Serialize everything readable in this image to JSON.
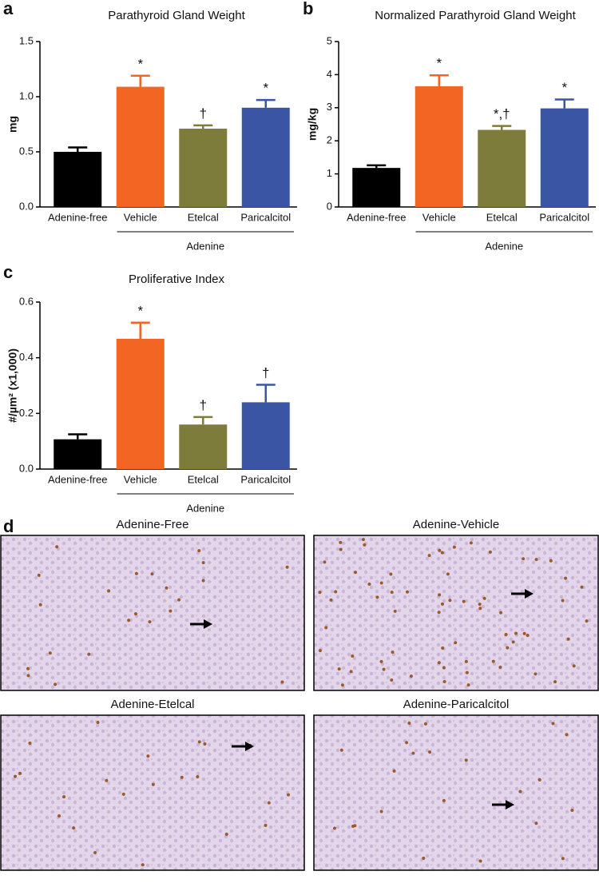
{
  "chart_data": [
    {
      "type": "bar",
      "panel_label": "a",
      "title": "Parathyroid Gland Weight",
      "y_label": "mg",
      "categories": [
        "Adenine-free",
        "Vehicle",
        "Etelcal",
        "Paricalcitol"
      ],
      "values": [
        0.5,
        1.09,
        0.71,
        0.9
      ],
      "errors": [
        0.04,
        0.1,
        0.03,
        0.07
      ],
      "annotations": [
        null,
        "*",
        "†",
        "*"
      ],
      "colors": [
        "#000000",
        "#f26522",
        "#7d7c3a",
        "#3a55a4"
      ],
      "group_label": "Adenine",
      "ylim": [
        0,
        1.5
      ],
      "yticks": [
        {
          "value": 0,
          "label": "0.0"
        },
        0.5,
        {
          "value": 1,
          "label": "1.0"
        },
        1.5
      ]
    },
    {
      "type": "bar",
      "panel_label": "b",
      "title": "Normalized Parathyroid Gland Weight",
      "y_label": "mg/kg",
      "categories": [
        "Adenine-free",
        "Vehicle",
        "Etelcal",
        "Paricalcitol"
      ],
      "values": [
        1.18,
        3.65,
        2.33,
        2.98
      ],
      "errors": [
        0.08,
        0.33,
        0.12,
        0.27
      ],
      "annotations": [
        null,
        "*",
        "*,†",
        "*"
      ],
      "colors": [
        "#000000",
        "#f26522",
        "#7d7c3a",
        "#3a55a4"
      ],
      "group_label": "Adenine",
      "ylim": [
        0,
        5
      ],
      "yticks": [
        0,
        1,
        2,
        3,
        4,
        5
      ]
    },
    {
      "type": "bar",
      "panel_label": "c",
      "title": "Proliferative Index",
      "y_label": "#/µm² (x1,000)",
      "categories": [
        "Adenine-free",
        "Vehicle",
        "Etelcal",
        "Paricalcitol"
      ],
      "values": [
        0.107,
        0.468,
        0.16,
        0.24
      ],
      "errors": [
        0.018,
        0.058,
        0.027,
        0.063
      ],
      "annotations": [
        null,
        "*",
        "†",
        "†"
      ],
      "colors": [
        "#000000",
        "#f26522",
        "#7d7c3a",
        "#3a55a4"
      ],
      "group_label": "Adenine",
      "ylim": [
        0,
        0.6
      ],
      "yticks": [
        {
          "value": 0,
          "label": "0.0"
        },
        0.2,
        0.4,
        0.6
      ]
    }
  ],
  "micrographs": {
    "panel_label": "d",
    "titles": [
      "Adenine-Free",
      "Adenine-Vehicle",
      "Adenine-Etelcal",
      "Adenine-Paricalcitol"
    ]
  }
}
